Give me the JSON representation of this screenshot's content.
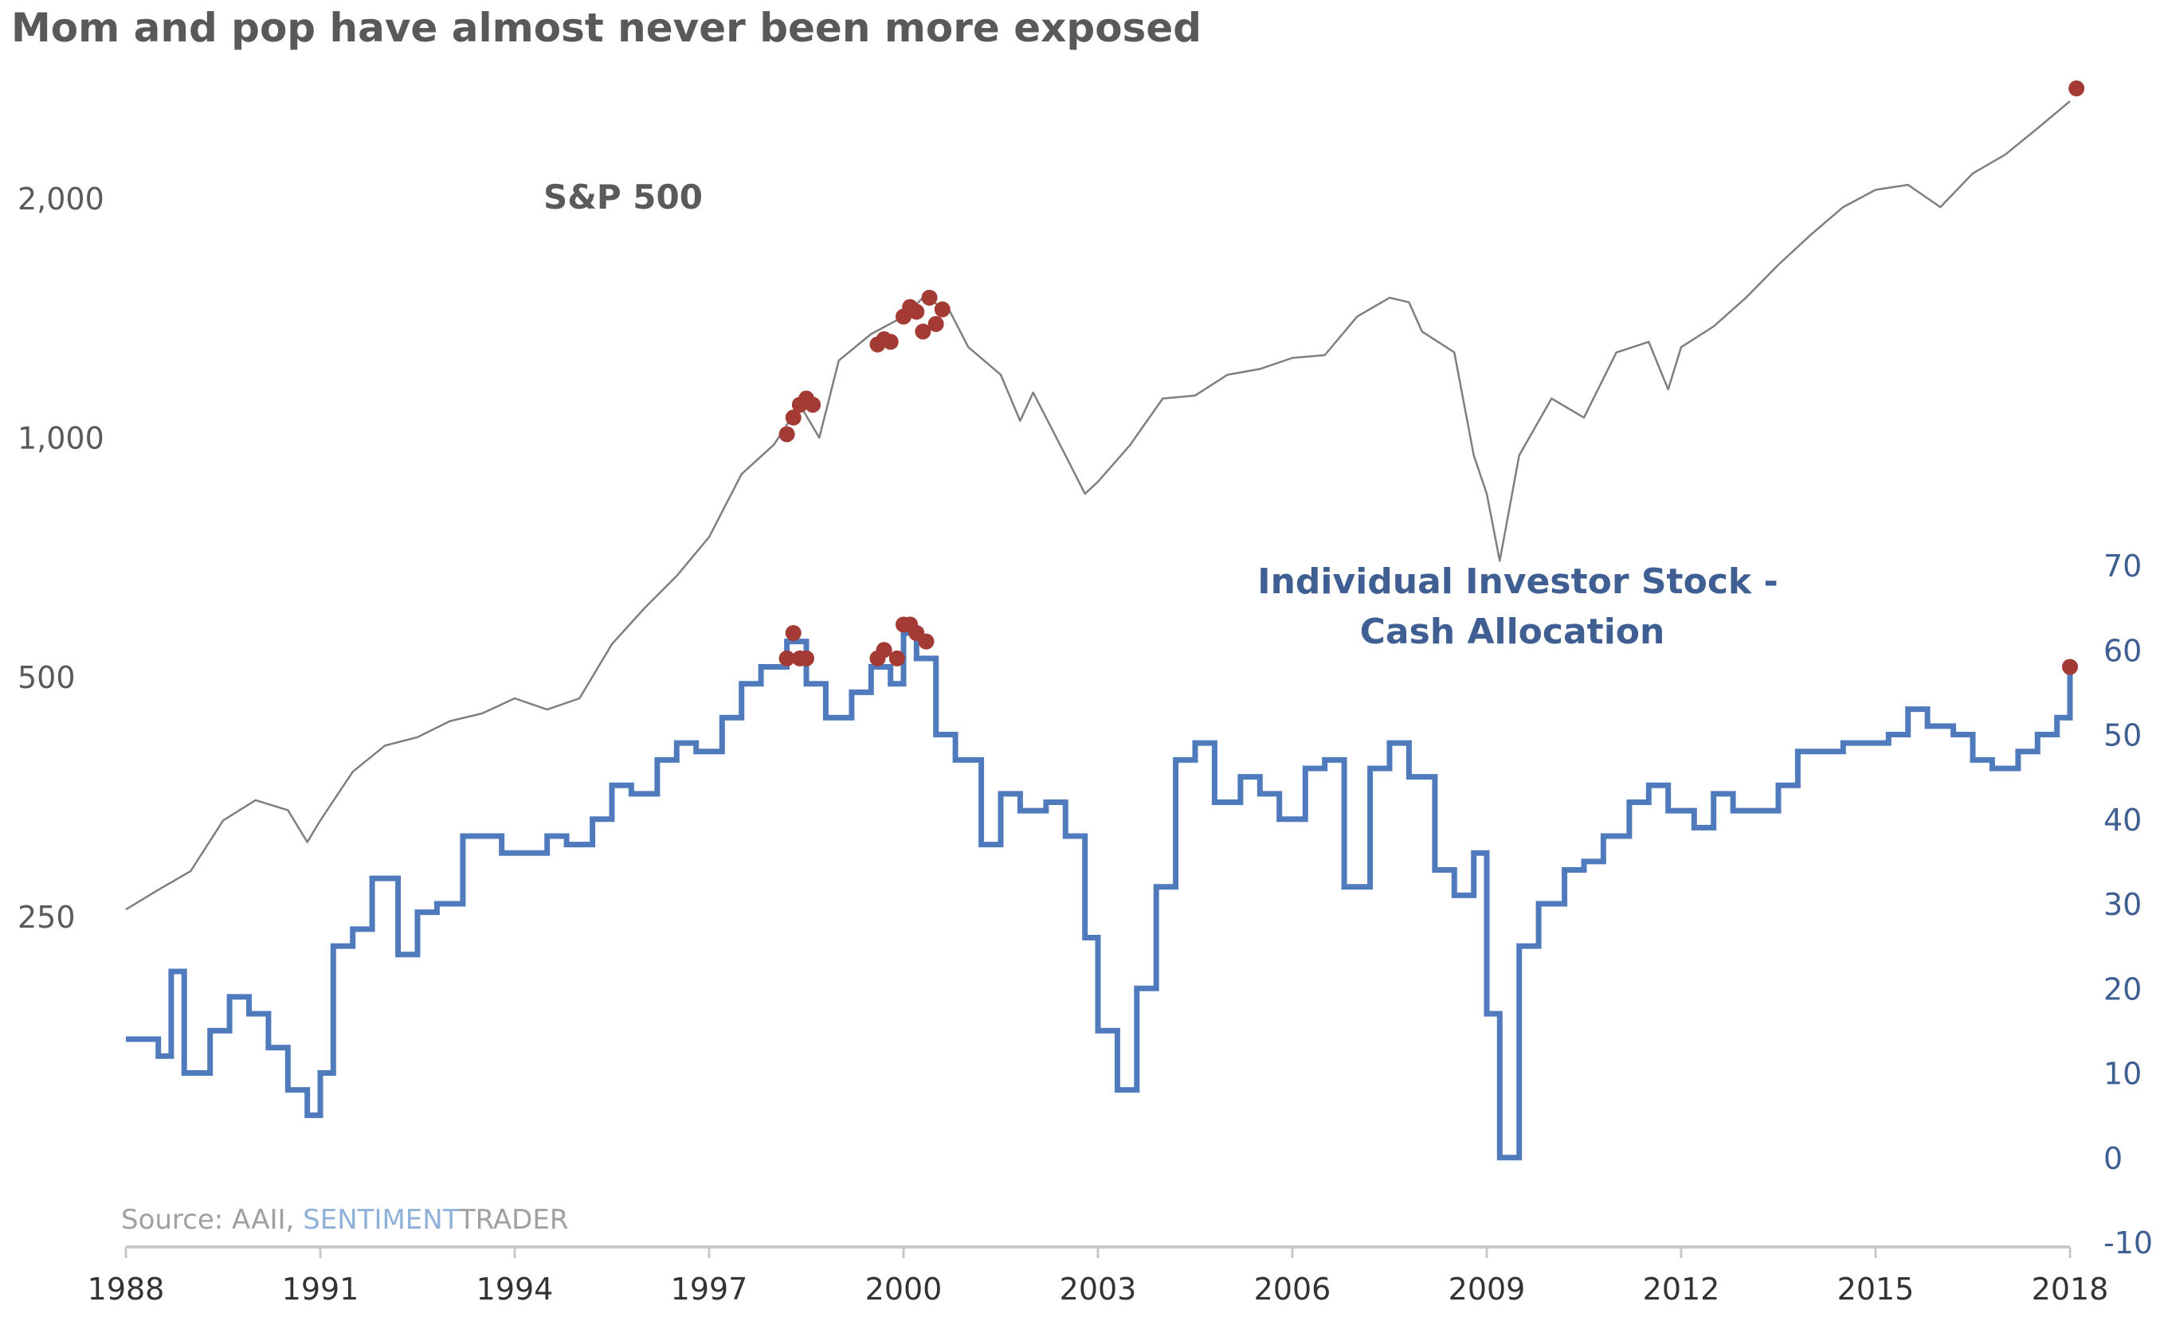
{
  "chart_data": {
    "type": "line",
    "title": "Mom and pop have almost never been more exposed",
    "source_prefix": "Source: AAII, ",
    "source_brand_a": "SENTIMENT",
    "source_brand_b": "TRADER",
    "x_ticks": [
      "1988",
      "1991",
      "1994",
      "1997",
      "2000",
      "2003",
      "2006",
      "2009",
      "2012",
      "2015",
      "2018"
    ],
    "xlim": [
      1988,
      2018
    ],
    "left_axis": {
      "scale": "log",
      "ticks": [
        250,
        500,
        1000,
        2000
      ],
      "tick_labels": [
        "250",
        "500",
        "1,000",
        "2,000"
      ],
      "ylim": [
        170,
        2900
      ]
    },
    "right_axis": {
      "scale": "linear",
      "ticks": [
        -10,
        0,
        10,
        20,
        30,
        40,
        50,
        60,
        70
      ],
      "tick_labels": [
        "-10",
        "0",
        "10",
        "20",
        "30",
        "40",
        "50",
        "60",
        "70"
      ],
      "ylim": [
        -10,
        70
      ]
    },
    "series": [
      {
        "name": "S&P 500",
        "axis": "left",
        "color": "#7f7f7f",
        "x": [
          1988.0,
          1988.5,
          1989.0,
          1989.5,
          1990.0,
          1990.5,
          1990.8,
          1991.0,
          1991.5,
          1992.0,
          1992.5,
          1993.0,
          1993.5,
          1994.0,
          1994.5,
          1995.0,
          1995.5,
          1996.0,
          1996.5,
          1997.0,
          1997.5,
          1998.0,
          1998.4,
          1998.7,
          1999.0,
          1999.5,
          2000.0,
          2000.3,
          2000.7,
          2001.0,
          2001.5,
          2001.8,
          2002.0,
          2002.5,
          2002.8,
          2003.0,
          2003.5,
          2004.0,
          2004.5,
          2005.0,
          2005.5,
          2006.0,
          2006.5,
          2007.0,
          2007.5,
          2007.8,
          2008.0,
          2008.5,
          2008.8,
          2009.0,
          2009.2,
          2009.5,
          2010.0,
          2010.5,
          2011.0,
          2011.5,
          2011.8,
          2012.0,
          2012.5,
          2013.0,
          2013.5,
          2014.0,
          2014.5,
          2015.0,
          2015.5,
          2016.0,
          2016.5,
          2017.0,
          2017.5,
          2018.0
        ],
        "values": [
          255,
          270,
          285,
          330,
          350,
          340,
          310,
          330,
          380,
          410,
          420,
          440,
          450,
          470,
          455,
          470,
          550,
          610,
          670,
          750,
          900,
          980,
          1100,
          1000,
          1250,
          1350,
          1420,
          1500,
          1450,
          1300,
          1200,
          1050,
          1140,
          950,
          850,
          880,
          980,
          1120,
          1130,
          1200,
          1220,
          1260,
          1270,
          1420,
          1500,
          1480,
          1360,
          1280,
          950,
          850,
          700,
          950,
          1120,
          1060,
          1280,
          1320,
          1150,
          1300,
          1380,
          1500,
          1650,
          1800,
          1950,
          2050,
          2080,
          1950,
          2150,
          2270,
          2450,
          2650
        ]
      },
      {
        "name": "Individual Investor Stock - Cash Allocation",
        "name_line1": "Individual Investor Stock -",
        "name_line2": "Cash Allocation",
        "axis": "right",
        "color": "#4f7bbd",
        "x": [
          1988.0,
          1988.5,
          1988.7,
          1988.9,
          1989.3,
          1989.6,
          1989.9,
          1990.2,
          1990.5,
          1990.8,
          1991.0,
          1991.2,
          1991.5,
          1991.8,
          1992.2,
          1992.5,
          1992.8,
          1993.2,
          1993.5,
          1993.8,
          1994.2,
          1994.5,
          1994.8,
          1995.2,
          1995.5,
          1995.8,
          1996.2,
          1996.5,
          1996.8,
          1997.2,
          1997.5,
          1997.8,
          1998.2,
          1998.5,
          1998.8,
          1999.2,
          1999.5,
          1999.8,
          2000.0,
          2000.2,
          2000.5,
          2000.8,
          2001.2,
          2001.5,
          2001.8,
          2002.2,
          2002.5,
          2002.8,
          2003.0,
          2003.3,
          2003.6,
          2003.9,
          2004.2,
          2004.5,
          2004.8,
          2005.2,
          2005.5,
          2005.8,
          2006.2,
          2006.5,
          2006.8,
          2007.2,
          2007.5,
          2007.8,
          2008.2,
          2008.5,
          2008.8,
          2009.0,
          2009.2,
          2009.5,
          2009.8,
          2010.2,
          2010.5,
          2010.8,
          2011.2,
          2011.5,
          2011.8,
          2012.2,
          2012.5,
          2012.8,
          2013.2,
          2013.5,
          2013.8,
          2014.2,
          2014.5,
          2014.8,
          2015.2,
          2015.5,
          2015.8,
          2016.2,
          2016.5,
          2016.8,
          2017.2,
          2017.5,
          2017.8,
          2018.0
        ],
        "values": [
          14,
          12,
          22,
          10,
          15,
          19,
          17,
          13,
          8,
          5,
          10,
          25,
          27,
          33,
          24,
          29,
          30,
          38,
          38,
          36,
          36,
          38,
          37,
          40,
          44,
          43,
          47,
          49,
          48,
          52,
          56,
          58,
          61,
          56,
          52,
          55,
          58,
          56,
          62,
          59,
          50,
          47,
          37,
          43,
          41,
          42,
          38,
          26,
          15,
          8,
          20,
          32,
          47,
          49,
          42,
          45,
          43,
          40,
          46,
          47,
          32,
          46,
          49,
          45,
          34,
          31,
          36,
          17,
          0,
          25,
          30,
          34,
          35,
          38,
          42,
          44,
          41,
          39,
          43,
          41,
          41,
          44,
          48,
          48,
          49,
          49,
          50,
          53,
          51,
          50,
          47,
          46,
          48,
          50,
          52,
          58
        ]
      }
    ],
    "highlights": {
      "color": "#a33a34",
      "sp500_points": [
        {
          "x": 1998.2,
          "y": 1010
        },
        {
          "x": 1998.3,
          "y": 1060
        },
        {
          "x": 1998.4,
          "y": 1100
        },
        {
          "x": 1998.5,
          "y": 1120
        },
        {
          "x": 1998.6,
          "y": 1100
        },
        {
          "x": 1999.6,
          "y": 1310
        },
        {
          "x": 1999.7,
          "y": 1330
        },
        {
          "x": 1999.8,
          "y": 1320
        },
        {
          "x": 2000.0,
          "y": 1420
        },
        {
          "x": 2000.1,
          "y": 1460
        },
        {
          "x": 2000.2,
          "y": 1440
        },
        {
          "x": 2000.3,
          "y": 1360
        },
        {
          "x": 2000.4,
          "y": 1500
        },
        {
          "x": 2000.5,
          "y": 1390
        },
        {
          "x": 2000.6,
          "y": 1450
        }
      ],
      "allocation_points": [
        {
          "x": 1998.2,
          "y": 59
        },
        {
          "x": 1998.3,
          "y": 62
        },
        {
          "x": 1998.4,
          "y": 59
        },
        {
          "x": 1998.5,
          "y": 59
        },
        {
          "x": 1999.6,
          "y": 59
        },
        {
          "x": 1999.7,
          "y": 60
        },
        {
          "x": 1999.9,
          "y": 59
        },
        {
          "x": 2000.0,
          "y": 63
        },
        {
          "x": 2000.1,
          "y": 63
        },
        {
          "x": 2000.2,
          "y": 62
        },
        {
          "x": 2000.35,
          "y": 61
        },
        {
          "x": 2018.0,
          "y": 58
        }
      ],
      "sp500_latest": {
        "x": 2018.1,
        "y": 2750
      }
    }
  }
}
